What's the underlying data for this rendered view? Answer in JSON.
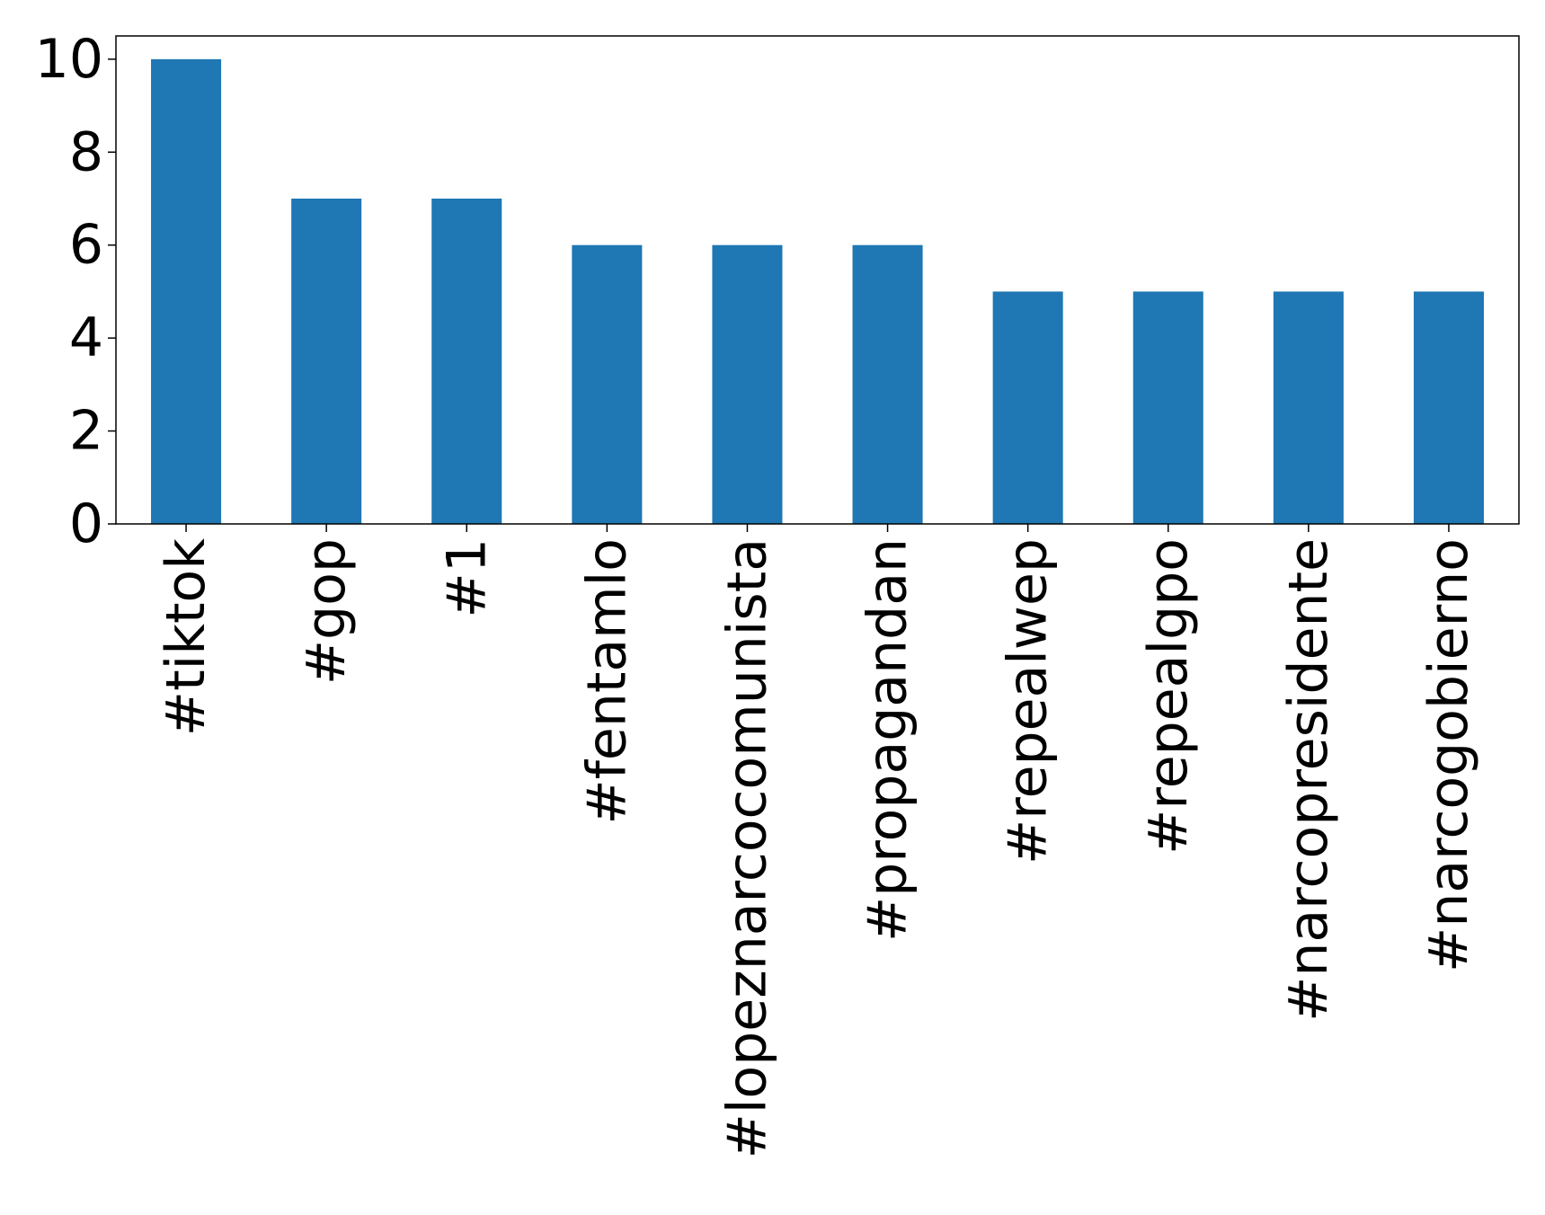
{
  "chart_data": {
    "type": "bar",
    "title": "",
    "xlabel": "",
    "ylabel": "",
    "categories": [
      "#tiktok",
      "#gop",
      "#1",
      "#fentamlo",
      "#lopeznarcocomunista",
      "#propagandan",
      "#repealwep",
      "#repealgpo",
      "#narcopresidente",
      "#narcogobierno"
    ],
    "values": [
      10,
      7,
      7,
      6,
      6,
      6,
      5,
      5,
      5,
      5
    ],
    "ylim": [
      0,
      10.5
    ],
    "yticks": [
      0,
      2,
      4,
      6,
      8,
      10
    ],
    "legend": "none",
    "grid": false,
    "colors": {
      "bar": "#1f77b4",
      "axis": "#000000",
      "background": "#ffffff"
    }
  }
}
